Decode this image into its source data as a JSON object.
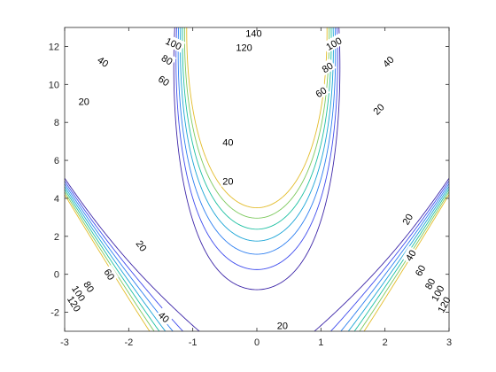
{
  "chart_data": {
    "type": "contour",
    "title": "",
    "xlabel": "",
    "ylabel": "",
    "xlim": [
      -3,
      3
    ],
    "ylim": [
      -3,
      13
    ],
    "x_ticks": [
      {
        "value": -3,
        "label": "-3"
      },
      {
        "value": -2,
        "label": "-2"
      },
      {
        "value": -1,
        "label": "-1"
      },
      {
        "value": 0,
        "label": "0"
      },
      {
        "value": 1,
        "label": "1"
      },
      {
        "value": 2,
        "label": "2"
      },
      {
        "value": 3,
        "label": "3"
      }
    ],
    "y_ticks": [
      {
        "value": -2,
        "label": "-2"
      },
      {
        "value": 0,
        "label": "0"
      },
      {
        "value": 2,
        "label": "2"
      },
      {
        "value": 4,
        "label": "4"
      },
      {
        "value": 6,
        "label": "6"
      },
      {
        "value": 8,
        "label": "8"
      },
      {
        "value": 10,
        "label": "10"
      },
      {
        "value": 12,
        "label": "12"
      }
    ],
    "grid": false,
    "colormap": "parula",
    "levels": [
      20,
      40,
      60,
      80,
      100,
      120,
      140
    ],
    "level_colors": [
      "#3d26a8",
      "#3f4ced",
      "#2c7ef0",
      "#1aa4d6",
      "#1ec0a2",
      "#7dc95e",
      "#e3bc2a"
    ],
    "contour_labels": [
      {
        "text": "140",
        "x": -0.05,
        "y": 12.7,
        "angle": 0
      },
      {
        "text": "120",
        "x": -0.2,
        "y": 11.95,
        "angle": 0
      },
      {
        "text": "100",
        "x": -1.3,
        "y": 12.15,
        "angle": 25
      },
      {
        "text": "100",
        "x": 1.2,
        "y": 12.15,
        "angle": -30
      },
      {
        "text": "80",
        "x": -1.4,
        "y": 11.3,
        "angle": 30
      },
      {
        "text": "80",
        "x": 1.1,
        "y": 10.9,
        "angle": -33
      },
      {
        "text": "60",
        "x": -1.45,
        "y": 10.2,
        "angle": 33
      },
      {
        "text": "60",
        "x": 1.0,
        "y": 9.6,
        "angle": -33
      },
      {
        "text": "40",
        "x": -2.4,
        "y": 11.2,
        "angle": 35
      },
      {
        "text": "40",
        "x": 2.05,
        "y": 11.2,
        "angle": -45
      },
      {
        "text": "40",
        "x": -0.45,
        "y": 6.95,
        "angle": 0
      },
      {
        "text": "20",
        "x": -2.7,
        "y": 9.1,
        "angle": 0
      },
      {
        "text": "20",
        "x": 1.9,
        "y": 8.7,
        "angle": -45
      },
      {
        "text": "20",
        "x": -0.45,
        "y": 4.9,
        "angle": 0
      },
      {
        "text": "20",
        "x": -1.8,
        "y": 1.5,
        "angle": 55
      },
      {
        "text": "20",
        "x": 2.35,
        "y": 2.9,
        "angle": -60
      },
      {
        "text": "20",
        "x": 0.4,
        "y": -2.7,
        "angle": 0
      },
      {
        "text": "40",
        "x": -1.45,
        "y": -2.25,
        "angle": 42
      },
      {
        "text": "40",
        "x": 2.4,
        "y": 1.0,
        "angle": -58
      },
      {
        "text": "60",
        "x": -2.3,
        "y": 0.0,
        "angle": 58
      },
      {
        "text": "60",
        "x": 2.55,
        "y": 0.2,
        "angle": -62
      },
      {
        "text": "80",
        "x": -2.62,
        "y": -0.65,
        "angle": 58
      },
      {
        "text": "80",
        "x": 2.7,
        "y": -0.5,
        "angle": -62
      },
      {
        "text": "100",
        "x": -2.78,
        "y": -1.0,
        "angle": 58
      },
      {
        "text": "100",
        "x": 2.82,
        "y": -1.0,
        "angle": -62
      },
      {
        "text": "120",
        "x": -2.85,
        "y": -1.55,
        "angle": 58
      },
      {
        "text": "120",
        "x": 2.92,
        "y": -1.6,
        "angle": -62
      }
    ]
  }
}
